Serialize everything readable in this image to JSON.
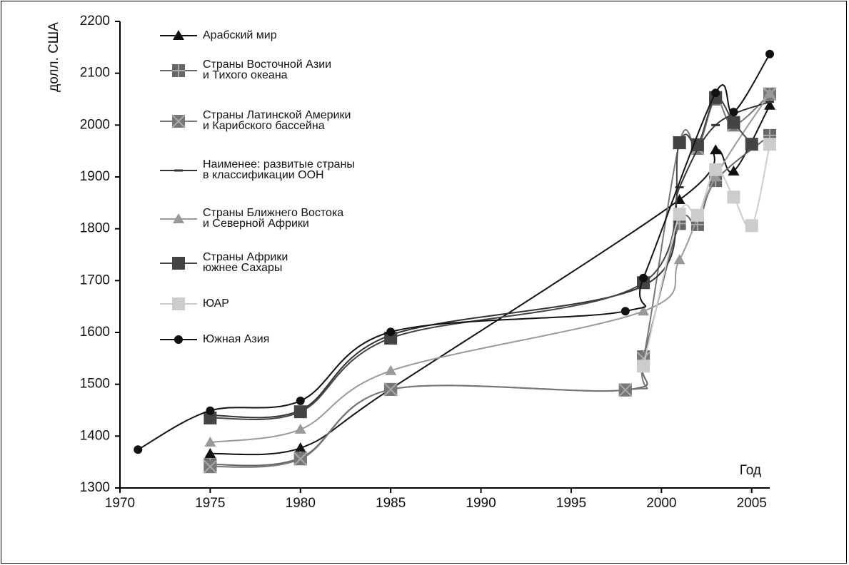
{
  "chart_data": {
    "type": "line",
    "ylabel": "долл. США",
    "xlabel": "Год",
    "xlim": [
      1970,
      2006
    ],
    "xticks": [
      1970,
      1975,
      1980,
      1985,
      1990,
      1995,
      2000,
      2005
    ],
    "ylim": [
      1300,
      2200
    ],
    "yticks": [
      1300,
      1400,
      1500,
      1600,
      1700,
      1800,
      1900,
      2000,
      2100,
      2200
    ],
    "series": [
      {
        "name": "Арабский мир",
        "color": "#111111",
        "marker": "triangle",
        "x": [
          1975,
          1980,
          1985,
          2001,
          2003,
          2004,
          2006
        ],
        "values": [
          1366,
          1377,
          1491,
          1856,
          1952,
          1911,
          2038
        ]
      },
      {
        "name": "Страны Восточной Азии\nи Тихого океана",
        "color": "#666666",
        "marker": "square-plus",
        "x": [
          1975,
          1980,
          1985,
          1998,
          1999,
          2001,
          2002,
          2003,
          2006
        ],
        "values": [
          1345,
          1358,
          1490,
          1489,
          1553,
          1810,
          1808,
          1893,
          1980
        ]
      },
      {
        "name": "Страны Латинской Америки\nи Карибского бассейна",
        "color": "#777777",
        "marker": "square-x",
        "x": [
          1975,
          1980,
          1985,
          1998,
          1999,
          2001,
          2002,
          2003,
          2004,
          2006
        ],
        "values": [
          1341,
          1356,
          1490,
          1489,
          1550,
          1966,
          1955,
          2050,
          2000,
          2060
        ]
      },
      {
        "name": "Наименее: развитые страны\nв классификации ООН",
        "color": "#333333",
        "marker": "dash",
        "x": [
          1975,
          1980,
          1985,
          1999,
          2001,
          2003,
          2006
        ],
        "values": [
          1440,
          1450,
          1595,
          1690,
          1880,
          2000,
          2045
        ]
      },
      {
        "name": "Страны Ближнего Востока\nи Северной Африки",
        "color": "#999999",
        "marker": "triangle",
        "x": [
          1975,
          1980,
          1985,
          1999,
          2001,
          2003,
          2006
        ],
        "values": [
          1388,
          1413,
          1526,
          1641,
          1740,
          1900,
          2061
        ]
      },
      {
        "name": "Страны Африки\nюжнее Сахары",
        "color": "#444444",
        "marker": "square",
        "x": [
          1975,
          1980,
          1985,
          1999,
          2001,
          2002,
          2003,
          2004,
          2005
        ],
        "values": [
          1435,
          1447,
          1589,
          1696,
          1966,
          1962,
          2053,
          2005,
          1963
        ]
      },
      {
        "name": "ЮАР",
        "color": "#cccccc",
        "marker": "square",
        "x": [
          1999,
          2001,
          2002,
          2003,
          2004,
          2005,
          2006
        ],
        "values": [
          1535,
          1828,
          1826,
          1914,
          1861,
          1806,
          1963
        ]
      },
      {
        "name": "Южная Азия",
        "color": "#111111",
        "marker": "circle",
        "x": [
          1971,
          1975,
          1980,
          1985,
          1998,
          1999,
          2003,
          2004,
          2006
        ],
        "values": [
          1374,
          1449,
          1468,
          1601,
          1641,
          1705,
          2062,
          2025,
          2137
        ]
      }
    ]
  }
}
